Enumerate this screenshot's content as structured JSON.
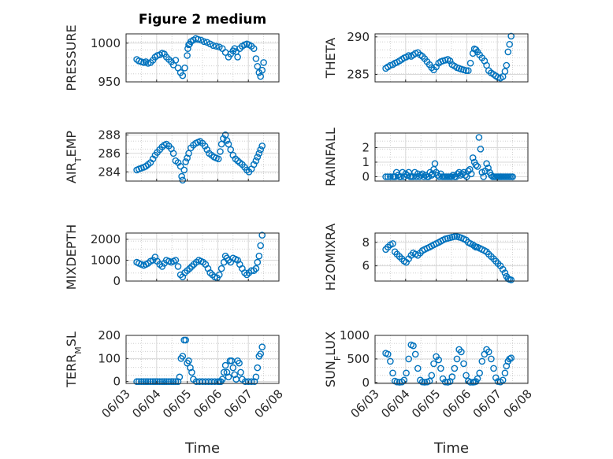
{
  "figure": {
    "title": "Figure 2 medium"
  },
  "style": {
    "marker_color": "#0072BD",
    "axes_color": "#262626",
    "grid_color": "#c8c8c8"
  },
  "chart_data": [
    {
      "type": "scatter",
      "ylabel": "PRESSURE",
      "xlim": [
        0,
        5
      ],
      "ylim": [
        950,
        1012
      ],
      "yticks": [
        950,
        1000
      ],
      "xticks": [],
      "x": [
        0.35,
        0.42,
        0.5,
        0.58,
        0.65,
        0.72,
        0.8,
        0.88,
        0.95,
        1.02,
        1.1,
        1.18,
        1.25,
        1.32,
        1.4,
        1.48,
        1.55,
        1.62,
        1.7,
        1.78,
        1.85,
        1.92,
        2.0,
        2.02,
        2.05,
        2.08,
        2.12,
        2.2,
        2.28,
        2.35,
        2.45,
        2.55,
        2.65,
        2.75,
        2.85,
        2.95,
        3.05,
        3.15,
        3.25,
        3.35,
        3.42,
        3.5,
        3.55,
        3.6,
        3.65,
        3.72,
        3.8,
        3.88,
        3.95,
        4.02,
        4.1,
        4.18,
        4.25,
        4.3,
        4.35,
        4.4,
        4.45,
        4.5
      ],
      "y": [
        979,
        977,
        976,
        975,
        976,
        974,
        975,
        978,
        982,
        984,
        985,
        987,
        986,
        982,
        979,
        976,
        972,
        978,
        968,
        962,
        958,
        968,
        984,
        993,
        998,
        999,
        1002,
        1004,
        1006,
        1005,
        1004,
        1002,
        1001,
        999,
        997,
        996,
        995,
        993,
        988,
        982,
        986,
        990,
        993,
        989,
        982,
        993,
        996,
        998,
        999,
        998,
        996,
        993,
        980,
        970,
        962,
        957,
        965,
        975
      ]
    },
    {
      "type": "scatter",
      "ylabel": "THETA",
      "xlim": [
        0,
        5
      ],
      "ylim": [
        284,
        290.4
      ],
      "yticks": [
        285,
        290
      ],
      "xticks": [],
      "x": [
        0.35,
        0.42,
        0.5,
        0.58,
        0.65,
        0.72,
        0.8,
        0.88,
        0.95,
        1.02,
        1.1,
        1.18,
        1.25,
        1.32,
        1.4,
        1.48,
        1.55,
        1.62,
        1.7,
        1.78,
        1.85,
        1.92,
        2.0,
        2.08,
        2.15,
        2.22,
        2.3,
        2.38,
        2.45,
        2.52,
        2.6,
        2.68,
        2.75,
        2.82,
        2.9,
        2.98,
        3.05,
        3.12,
        3.2,
        3.25,
        3.3,
        3.35,
        3.42,
        3.5,
        3.58,
        3.65,
        3.72,
        3.8,
        3.88,
        3.95,
        4.02,
        4.1,
        4.18,
        4.25,
        4.3,
        4.35,
        4.4,
        4.45
      ],
      "y": [
        285.8,
        286.0,
        286.2,
        286.3,
        286.5,
        286.6,
        286.8,
        287.0,
        287.2,
        287.3,
        287.5,
        287.4,
        287.6,
        287.8,
        287.9,
        287.6,
        287.4,
        287.1,
        286.7,
        286.3,
        285.9,
        285.6,
        286.0,
        286.5,
        286.7,
        286.8,
        286.9,
        287.0,
        286.8,
        286.3,
        286.1,
        285.9,
        285.8,
        285.7,
        285.6,
        285.5,
        285.5,
        286.5,
        287.8,
        288.4,
        288.3,
        288.0,
        287.6,
        287.2,
        286.8,
        286.2,
        285.5,
        285.2,
        285.0,
        284.8,
        284.6,
        284.5,
        284.7,
        285.4,
        286.2,
        288.0,
        289.0,
        290.1
      ]
    },
    {
      "type": "scatter",
      "ylabel": "AIR_TEMP",
      "xlim": [
        0,
        5
      ],
      "ylim": [
        283,
        288.2
      ],
      "yticks": [
        284,
        286,
        288
      ],
      "xticks": [],
      "x": [
        0.35,
        0.42,
        0.5,
        0.58,
        0.65,
        0.72,
        0.8,
        0.88,
        0.95,
        1.02,
        1.1,
        1.18,
        1.25,
        1.32,
        1.4,
        1.48,
        1.55,
        1.62,
        1.7,
        1.78,
        1.82,
        1.85,
        1.9,
        1.95,
        2.0,
        2.05,
        2.12,
        2.2,
        2.28,
        2.35,
        2.42,
        2.5,
        2.58,
        2.65,
        2.72,
        2.8,
        2.88,
        2.95,
        3.02,
        3.08,
        3.12,
        3.18,
        3.25,
        3.3,
        3.35,
        3.42,
        3.5,
        3.58,
        3.65,
        3.72,
        3.8,
        3.88,
        3.95,
        4.02,
        4.1,
        4.18,
        4.25,
        4.3,
        4.35,
        4.4,
        4.45
      ],
      "y": [
        284.2,
        284.3,
        284.4,
        284.5,
        284.6,
        284.8,
        285.0,
        285.4,
        285.8,
        286.1,
        286.4,
        286.7,
        286.9,
        287.0,
        286.8,
        286.5,
        286.0,
        285.2,
        285.0,
        284.6,
        283.5,
        283.1,
        284.2,
        285.1,
        285.5,
        286.0,
        286.6,
        286.9,
        287.1,
        287.2,
        287.3,
        287.1,
        286.8,
        286.4,
        286.0,
        285.8,
        285.6,
        285.5,
        285.4,
        286.2,
        287.0,
        287.6,
        288.0,
        287.4,
        287.0,
        286.4,
        285.8,
        285.4,
        285.2,
        285.0,
        284.8,
        284.5,
        284.2,
        284.0,
        284.3,
        284.8,
        285.2,
        285.6,
        286.0,
        286.4,
        286.8
      ]
    },
    {
      "type": "scatter",
      "ylabel": "RAINFALL",
      "xlim": [
        0,
        5
      ],
      "ylim": [
        -0.3,
        3
      ],
      "yticks": [
        0,
        1,
        2
      ],
      "xticks": [],
      "x": [
        0.35,
        0.42,
        0.5,
        0.58,
        0.62,
        0.66,
        0.7,
        0.75,
        0.8,
        0.85,
        0.9,
        0.95,
        1.0,
        1.05,
        1.1,
        1.15,
        1.2,
        1.25,
        1.3,
        1.35,
        1.4,
        1.45,
        1.5,
        1.55,
        1.6,
        1.65,
        1.7,
        1.75,
        1.8,
        1.85,
        1.88,
        1.92,
        1.96,
        2.0,
        2.05,
        2.1,
        2.15,
        2.2,
        2.25,
        2.3,
        2.35,
        2.4,
        2.45,
        2.5,
        2.55,
        2.6,
        2.65,
        2.7,
        2.75,
        2.8,
        2.85,
        2.9,
        2.95,
        3.0,
        3.05,
        3.1,
        3.15,
        3.2,
        3.25,
        3.3,
        3.35,
        3.4,
        3.45,
        3.5,
        3.55,
        3.6,
        3.65,
        3.7,
        3.75,
        3.8,
        3.85,
        3.9,
        3.95,
        4.0,
        4.05,
        4.1,
        4.15,
        4.2,
        4.25,
        4.3,
        4.35,
        4.4,
        4.45,
        4.5
      ],
      "y": [
        0,
        0,
        0,
        0,
        0,
        0,
        0.3,
        0.1,
        0,
        0,
        0.3,
        0,
        0.2,
        0.1,
        0.3,
        0,
        0,
        0,
        0.3,
        0,
        0.2,
        0,
        0.1,
        0.2,
        0,
        0.1,
        0,
        0,
        0.3,
        0.1,
        0.2,
        0.5,
        0.9,
        0.3,
        0.1,
        0,
        0.2,
        0,
        0,
        0,
        0,
        0,
        0,
        0,
        0.1,
        0,
        0,
        0.2,
        0.3,
        0.1,
        0.2,
        0.3,
        0.1,
        0,
        0.4,
        0.5,
        0.2,
        1.3,
        1.0,
        0.8,
        0.7,
        2.7,
        1.9,
        0.3,
        0,
        0.4,
        0.9,
        0.6,
        0.3,
        0.1,
        0,
        0,
        0,
        0,
        0,
        0,
        0,
        0,
        0,
        0,
        0,
        0,
        0,
        0
      ]
    },
    {
      "type": "scatter",
      "ylabel": "MIXDEPTH",
      "xlim": [
        0,
        5
      ],
      "ylim": [
        0,
        2300
      ],
      "yticks": [
        0,
        1000,
        2000
      ],
      "xticks": [],
      "x": [
        0.35,
        0.42,
        0.5,
        0.58,
        0.65,
        0.72,
        0.8,
        0.88,
        0.95,
        1.02,
        1.1,
        1.18,
        1.25,
        1.32,
        1.4,
        1.48,
        1.55,
        1.62,
        1.7,
        1.78,
        1.85,
        1.92,
        2.0,
        2.08,
        2.15,
        2.22,
        2.3,
        2.38,
        2.45,
        2.52,
        2.6,
        2.68,
        2.75,
        2.82,
        2.9,
        2.98,
        3.05,
        3.12,
        3.2,
        3.25,
        3.3,
        3.35,
        3.42,
        3.5,
        3.58,
        3.65,
        3.72,
        3.8,
        3.88,
        3.95,
        4.02,
        4.1,
        4.18,
        4.25,
        4.3,
        4.35,
        4.4,
        4.45
      ],
      "y": [
        900,
        850,
        800,
        750,
        800,
        850,
        950,
        1000,
        1150,
        950,
        800,
        700,
        850,
        1000,
        950,
        900,
        950,
        1000,
        700,
        300,
        200,
        400,
        500,
        600,
        700,
        800,
        900,
        1000,
        950,
        900,
        800,
        600,
        400,
        300,
        200,
        150,
        300,
        600,
        900,
        1200,
        1100,
        1000,
        900,
        1100,
        1050,
        1000,
        800,
        600,
        400,
        300,
        400,
        500,
        500,
        600,
        900,
        1200,
        1700,
        2200
      ]
    },
    {
      "type": "scatter",
      "ylabel": "H2OMIXRA",
      "xlim": [
        0,
        5
      ],
      "ylim": [
        4.7,
        8.8
      ],
      "yticks": [
        6,
        8
      ],
      "xticks": [],
      "x": [
        0.35,
        0.42,
        0.5,
        0.58,
        0.65,
        0.72,
        0.8,
        0.88,
        0.95,
        1.02,
        1.1,
        1.18,
        1.25,
        1.32,
        1.4,
        1.48,
        1.55,
        1.62,
        1.7,
        1.78,
        1.85,
        1.92,
        2.0,
        2.08,
        2.15,
        2.22,
        2.3,
        2.38,
        2.45,
        2.52,
        2.6,
        2.68,
        2.75,
        2.82,
        2.9,
        2.98,
        3.05,
        3.12,
        3.2,
        3.25,
        3.3,
        3.35,
        3.42,
        3.5,
        3.58,
        3.65,
        3.72,
        3.8,
        3.88,
        3.95,
        4.02,
        4.1,
        4.18,
        4.25,
        4.3,
        4.35,
        4.4,
        4.45
      ],
      "y": [
        7.4,
        7.6,
        7.8,
        7.9,
        7.2,
        7.0,
        6.8,
        6.6,
        6.4,
        6.3,
        6.6,
        6.9,
        7.1,
        7.0,
        6.9,
        7.1,
        7.3,
        7.4,
        7.5,
        7.6,
        7.7,
        7.8,
        7.9,
        8.0,
        8.1,
        8.2,
        8.3,
        8.35,
        8.4,
        8.45,
        8.5,
        8.5,
        8.45,
        8.4,
        8.3,
        8.2,
        8.0,
        7.9,
        7.8,
        7.7,
        7.6,
        7.6,
        7.5,
        7.4,
        7.3,
        7.2,
        7.0,
        6.8,
        6.6,
        6.4,
        6.2,
        6.0,
        5.7,
        5.4,
        5.1,
        4.9,
        4.85,
        4.8
      ]
    },
    {
      "type": "scatter",
      "ylabel": "TERR_MSL",
      "xlim": [
        0,
        5
      ],
      "ylim": [
        -8,
        200
      ],
      "yticks": [
        0,
        100,
        200
      ],
      "xticks": [
        "06/03",
        "06/04",
        "06/05",
        "06/06",
        "06/07",
        "06/08"
      ],
      "xlabel": "Time",
      "x": [
        0.35,
        0.42,
        0.5,
        0.58,
        0.65,
        0.72,
        0.8,
        0.88,
        0.95,
        1.02,
        1.1,
        1.18,
        1.25,
        1.32,
        1.4,
        1.48,
        1.55,
        1.62,
        1.7,
        1.75,
        1.8,
        1.85,
        1.9,
        1.95,
        2.0,
        2.05,
        2.1,
        2.15,
        2.2,
        2.3,
        2.4,
        2.5,
        2.6,
        2.7,
        2.8,
        2.9,
        3.0,
        3.05,
        3.1,
        3.15,
        3.2,
        3.25,
        3.3,
        3.35,
        3.4,
        3.45,
        3.5,
        3.55,
        3.6,
        3.65,
        3.7,
        3.75,
        3.8,
        3.9,
        4.0,
        4.1,
        4.2,
        4.25,
        4.3,
        4.35,
        4.4,
        4.45
      ],
      "y": [
        0,
        0,
        0,
        0,
        0,
        0,
        0,
        0,
        0,
        0,
        0,
        0,
        0,
        0,
        0,
        0,
        0,
        0,
        0,
        20,
        100,
        110,
        180,
        180,
        80,
        90,
        60,
        40,
        10,
        0,
        0,
        0,
        0,
        0,
        0,
        0,
        0,
        0,
        0,
        10,
        40,
        70,
        40,
        20,
        90,
        90,
        60,
        30,
        10,
        90,
        80,
        40,
        10,
        0,
        0,
        0,
        0,
        20,
        60,
        110,
        120,
        150
      ]
    },
    {
      "type": "scatter",
      "ylabel": "SUN_FLUX",
      "xlim": [
        0,
        5
      ],
      "ylim": [
        -20,
        1000
      ],
      "yticks": [
        0,
        500,
        1000
      ],
      "xticks": [
        "06/03",
        "06/04",
        "06/05",
        "06/06",
        "06/07",
        "06/08"
      ],
      "xlabel": "Time",
      "x": [
        0.35,
        0.42,
        0.5,
        0.58,
        0.65,
        0.72,
        0.8,
        0.88,
        0.95,
        1.02,
        1.1,
        1.18,
        1.25,
        1.32,
        1.4,
        1.48,
        1.55,
        1.62,
        1.7,
        1.78,
        1.85,
        1.92,
        2.0,
        2.08,
        2.15,
        2.22,
        2.3,
        2.38,
        2.45,
        2.52,
        2.6,
        2.68,
        2.75,
        2.82,
        2.9,
        2.98,
        3.05,
        3.12,
        3.2,
        3.25,
        3.3,
        3.35,
        3.42,
        3.5,
        3.58,
        3.65,
        3.72,
        3.8,
        3.88,
        3.95,
        4.02,
        4.1,
        4.18,
        4.25,
        4.3,
        4.35,
        4.4,
        4.45
      ],
      "y": [
        620,
        600,
        450,
        200,
        30,
        10,
        5,
        10,
        50,
        200,
        500,
        800,
        780,
        600,
        300,
        50,
        10,
        5,
        10,
        30,
        150,
        400,
        550,
        480,
        300,
        80,
        10,
        5,
        20,
        120,
        300,
        500,
        700,
        650,
        400,
        150,
        30,
        5,
        5,
        10,
        20,
        80,
        200,
        450,
        600,
        700,
        650,
        500,
        300,
        100,
        20,
        10,
        50,
        200,
        350,
        450,
        500,
        520
      ]
    }
  ]
}
